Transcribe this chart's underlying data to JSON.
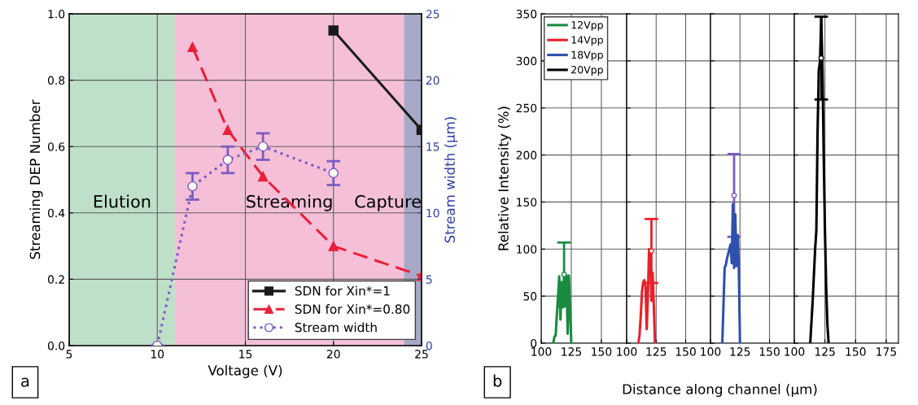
{
  "chart_data": [
    {
      "type": "line",
      "xlabel": "Voltage (V)",
      "ylabel": "Streaming DEP Number",
      "y2label": "Stream width (μm)",
      "xlim": [
        5,
        25
      ],
      "xticks": [
        5,
        10,
        15,
        20,
        25
      ],
      "ylim": [
        0,
        1
      ],
      "yticks": [
        {
          "value": 0,
          "label": "0.0"
        },
        0.2,
        0.4,
        0.6,
        0.8,
        {
          "value": 1,
          "label": "1.0"
        }
      ],
      "y2lim": [
        0,
        25
      ],
      "y2ticks": [
        0,
        5,
        10,
        15,
        20,
        25
      ],
      "grid": true,
      "legend": "bottom right",
      "annotations": [
        "a"
      ],
      "bands": [
        {
          "axis": "x",
          "from": 5,
          "to": 11,
          "label": "Elution",
          "color": "#bfe0c8"
        },
        {
          "axis": "x",
          "from": 11,
          "to": 24,
          "label": "Streaming",
          "color": "#f5bfd8"
        },
        {
          "axis": "x",
          "from": 24,
          "to": 25,
          "label": "Capture",
          "color": "#a8a8c8"
        }
      ],
      "series": [
        {
          "name": "SDN for Xin*=1",
          "color": "#1a1a1a",
          "x": [
            20,
            25
          ],
          "values": [
            0.95,
            0.65
          ],
          "marker": "square",
          "line_style": "solid"
        },
        {
          "name": "SDN for Xin*=0.80",
          "color": "#e8203a",
          "x": [
            12,
            14,
            16,
            20,
            25
          ],
          "values": [
            0.9,
            0.65,
            0.51,
            0.3,
            0.21
          ],
          "marker": "triangle",
          "line_style": "dashed"
        },
        {
          "name": "Stream width",
          "color": "#7b5cc0",
          "x": [
            10,
            12,
            14,
            16,
            20
          ],
          "values": [
            0,
            12,
            14,
            15,
            13
          ],
          "errors": [
            null,
            1,
            1,
            1,
            0.9
          ],
          "marker": "circle",
          "line_style": "dotted",
          "axis": "y2"
        }
      ]
    },
    {
      "type": "line",
      "ylabel": "Relative Intensity (%)",
      "xlabel": "Distance along channel (μm)",
      "xlim": [
        100,
        171
      ],
      "xticks": [
        100,
        125,
        150
      ],
      "ylim": [
        0,
        350
      ],
      "yticks": [
        0,
        50,
        100,
        150,
        200,
        250,
        300,
        350
      ],
      "grid": true,
      "legend": "top left",
      "annotations": [
        "b"
      ],
      "series": [
        {
          "name": "12Vpp",
          "color": "#1a8a40",
          "x": [
            110,
            111,
            112,
            113,
            114,
            115,
            116,
            117,
            118,
            119,
            120,
            121,
            122,
            123,
            124,
            125
          ],
          "values": [
            0,
            7,
            8,
            30,
            50,
            71,
            25,
            65,
            38,
            70,
            40,
            72,
            10,
            72,
            38,
            0
          ]
        },
        {
          "type": "scatter",
          "color": "#1a8a40",
          "x": [
            119
          ],
          "values": [
            73
          ],
          "errors": [
            34
          ],
          "marker": "circle"
        }
      ]
    },
    {
      "type": "line",
      "xlim": [
        100,
        171
      ],
      "xticks": [
        100,
        125,
        150
      ],
      "ylim": [
        0,
        350
      ],
      "yticks": [
        0,
        50,
        100,
        150,
        200,
        250,
        300,
        350
      ],
      "grid": true,
      "tick_labels": "x",
      "series": [
        {
          "name": "14Vpp",
          "color": "#e8202a",
          "x": [
            110,
            111,
            112,
            113,
            114,
            115,
            116,
            117,
            118,
            119,
            120,
            121,
            122,
            123,
            124
          ],
          "values": [
            0,
            10,
            30,
            55,
            65,
            67,
            60,
            15,
            50,
            100,
            98,
            45,
            75,
            40,
            0
          ]
        },
        {
          "type": "scatter",
          "color": "#e8202a",
          "x": [
            121
          ],
          "values": [
            98
          ],
          "errors": [
            34
          ],
          "marker": "circle"
        }
      ]
    },
    {
      "type": "line",
      "xlim": [
        100,
        171
      ],
      "xticks": [
        100,
        125,
        150
      ],
      "ylim": [
        0,
        350
      ],
      "yticks": [
        0,
        50,
        100,
        150,
        200,
        250,
        300,
        350
      ],
      "grid": true,
      "tick_labels": "x",
      "series": [
        {
          "name": "18Vpp",
          "color": "#3050b0",
          "x": [
            110,
            111,
            112,
            113,
            114,
            115,
            116,
            117,
            118,
            119,
            120,
            121,
            122,
            123,
            124,
            125
          ],
          "values": [
            0,
            40,
            80,
            83,
            90,
            95,
            100,
            105,
            85,
            148,
            80,
            137,
            82,
            115,
            80,
            0
          ]
        },
        {
          "type": "scatter",
          "color": "#7b5cc0",
          "x": [
            120
          ],
          "values": [
            157
          ],
          "errors": [
            44
          ],
          "marker": "circle"
        }
      ]
    },
    {
      "type": "line",
      "xlim": [
        100,
        185
      ],
      "xticks": [
        100,
        125,
        150,
        175
      ],
      "ylim": [
        0,
        350
      ],
      "yticks": [
        0,
        50,
        100,
        150,
        200,
        250,
        300,
        350
      ],
      "grid": true,
      "tick_labels": "x",
      "series": [
        {
          "name": "20Vpp",
          "color": "#000000",
          "x": [
            113,
            115,
            117,
            118,
            119,
            120,
            121,
            122,
            123,
            124,
            125,
            126,
            127,
            128
          ],
          "values": [
            0,
            45,
            100,
            120,
            225,
            290,
            300,
            346,
            290,
            200,
            120,
            60,
            20,
            0
          ]
        },
        {
          "type": "scatter",
          "color": "#000000",
          "x": [
            122
          ],
          "values": [
            303
          ],
          "errors": [
            44
          ],
          "marker": "circle"
        }
      ]
    }
  ]
}
